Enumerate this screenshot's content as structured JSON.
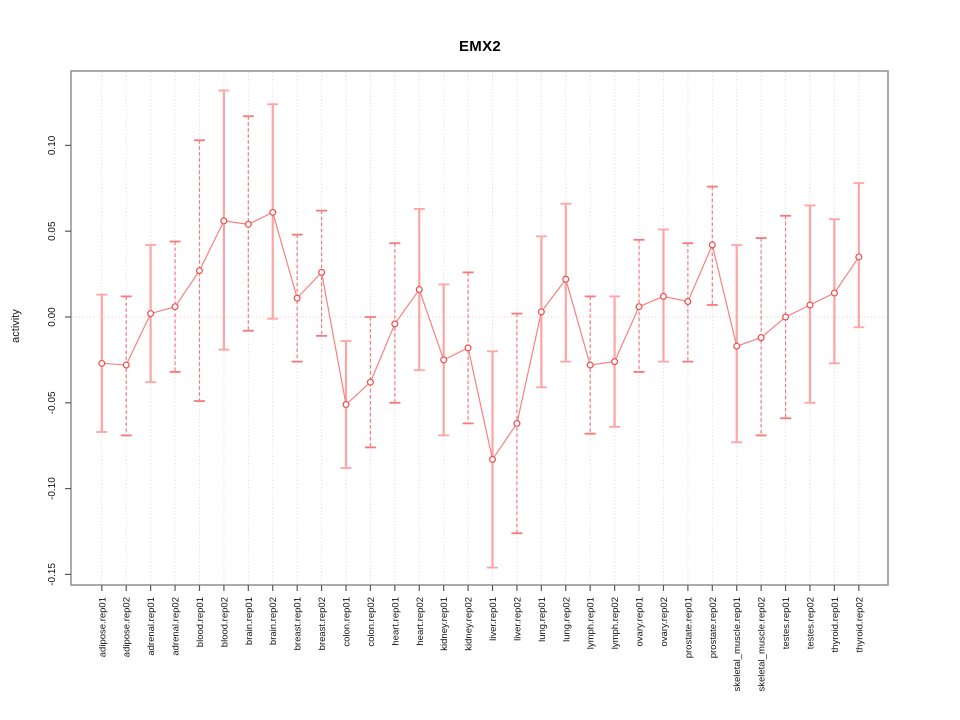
{
  "page": {
    "background": "#ffffff"
  },
  "chart_data": {
    "type": "scatter",
    "title": "EMX2",
    "ylabel": "activity",
    "xlabel": "",
    "ylim": [
      -0.156,
      0.144
    ],
    "yticks": [
      0.1,
      0.05,
      0.0,
      -0.05,
      -0.1,
      -0.15
    ],
    "zero_line": 0.0,
    "grid": "vertical dotted gridline at each category; dotted horizontal line at y=0",
    "legend_position": "none",
    "categories": [
      "adipose.rep01",
      "adipose.rep02",
      "adrenal.rep01",
      "adrenal.rep02",
      "blood.rep01",
      "blood.rep02",
      "brain.rep01",
      "brain.rep02",
      "breast.rep01",
      "breast.rep02",
      "colon.rep01",
      "colon.rep02",
      "heart.rep01",
      "heart.rep02",
      "kidney.rep01",
      "kidney.rep02",
      "liver.rep01",
      "liver.rep02",
      "lung.rep01",
      "lung.rep02",
      "lymph.rep01",
      "lymph.rep02",
      "ovary.rep01",
      "ovary.rep02",
      "prostate.rep01",
      "prostate.rep02",
      "skeletal_muscle.rep01",
      "skeletal_muscle.rep02",
      "testes.rep01",
      "testes.rep02",
      "thyroid.rep01",
      "thyroid.rep02"
    ],
    "series": [
      {
        "name": "EMX2 activity",
        "marker": "open-circle",
        "values": [
          -0.027,
          -0.028,
          0.002,
          0.006,
          0.027,
          0.056,
          0.054,
          0.061,
          0.011,
          0.026,
          -0.051,
          -0.038,
          -0.004,
          0.016,
          -0.025,
          -0.018,
          -0.083,
          -0.062,
          0.003,
          0.022,
          -0.028,
          -0.026,
          0.006,
          0.012,
          0.009,
          0.042,
          -0.017,
          -0.012,
          0.0,
          0.007,
          0.014,
          0.035
        ],
        "error_high": [
          0.013,
          0.012,
          0.042,
          0.044,
          0.103,
          0.132,
          0.117,
          0.124,
          0.048,
          0.062,
          -0.014,
          0.0,
          0.043,
          0.063,
          0.019,
          0.026,
          -0.02,
          0.002,
          0.047,
          0.066,
          0.012,
          0.012,
          0.045,
          0.051,
          0.043,
          0.076,
          0.042,
          0.046,
          0.059,
          0.065,
          0.057,
          0.078
        ],
        "error_low": [
          -0.067,
          -0.069,
          -0.038,
          -0.032,
          -0.049,
          -0.019,
          -0.008,
          -0.001,
          -0.026,
          -0.011,
          -0.088,
          -0.076,
          -0.05,
          -0.031,
          -0.069,
          -0.062,
          -0.146,
          -0.126,
          -0.041,
          -0.026,
          -0.068,
          -0.064,
          -0.032,
          -0.026,
          -0.026,
          0.007,
          -0.073,
          -0.069,
          -0.059,
          -0.05,
          -0.027,
          -0.006
        ],
        "bar_styles": [
          "solid",
          "dashed",
          "solid",
          "dashed",
          "dashed",
          "solid",
          "dashed",
          "solid",
          "dashed",
          "dashed",
          "solid",
          "dashed",
          "dashed",
          "solid",
          "solid",
          "dashed",
          "solid",
          "dashed",
          "solid",
          "solid",
          "dashed",
          "solid",
          "dashed",
          "solid",
          "dashed",
          "dashed",
          "solid",
          "dashed",
          "dashed",
          "solid",
          "solid",
          "solid"
        ]
      }
    ],
    "colors": {
      "point": "#f24a4a",
      "series_line": "#f98080",
      "errorbar_solid": "#ffa4a4",
      "errorbar_dashed": "#f87878",
      "gridline": "#d8d8d8",
      "zero_line": "#e6c6c6",
      "frame": "#8f8f8f",
      "tick": "#5a5a5a",
      "text": "#111111"
    }
  }
}
